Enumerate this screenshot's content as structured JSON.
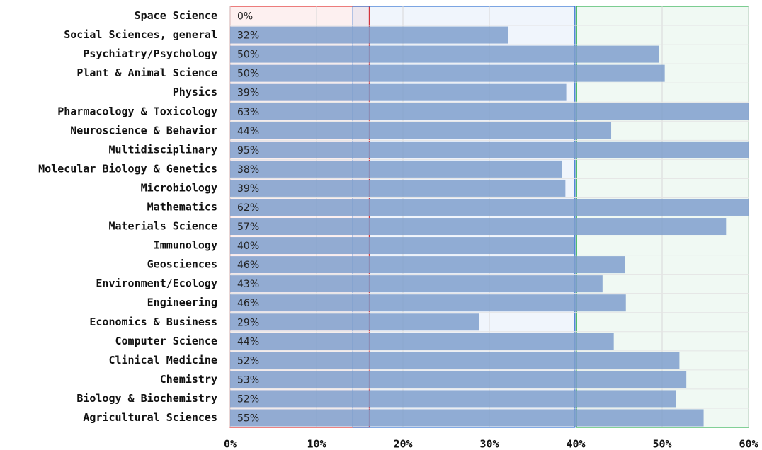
{
  "chart_data": {
    "type": "barh",
    "categories": [
      "Space Science",
      "Social Sciences, general",
      "Psychiatry/Psychology",
      "Plant & Animal Science",
      "Physics",
      "Pharmacology & Toxicology",
      "Neuroscience & Behavior",
      "Multidisciplinary",
      "Molecular Biology & Genetics",
      "Microbiology",
      "Mathematics",
      "Materials Science",
      "Immunology",
      "Geosciences",
      "Environment/Ecology",
      "Engineering",
      "Economics & Business",
      "Computer Science",
      "Clinical Medicine",
      "Chemistry",
      "Biology & Biochemistry",
      "Agricultural Sciences"
    ],
    "values": [
      0,
      32.2,
      49.6,
      50.3,
      38.9,
      63,
      44.1,
      95,
      38.4,
      38.8,
      62,
      57.4,
      39.8,
      45.7,
      43.1,
      45.8,
      28.8,
      44.4,
      52.0,
      52.8,
      51.6,
      54.8
    ],
    "value_labels": [
      "0%",
      "32%",
      "50%",
      "50%",
      "39%",
      "63%",
      "44%",
      "95%",
      "38%",
      "39%",
      "62%",
      "57%",
      "40%",
      "46%",
      "43%",
      "46%",
      "29%",
      "44%",
      "52%",
      "53%",
      "52%",
      "55%"
    ],
    "color": "#7f9fcc",
    "xlim": [
      0,
      60
    ],
    "xticks": [
      {
        "value": 0,
        "label": "0%"
      },
      {
        "value": 10,
        "label": "10%"
      },
      {
        "value": 20,
        "label": "20%"
      },
      {
        "value": 30,
        "label": "30%"
      },
      {
        "value": 40,
        "label": "40%"
      },
      {
        "value": 50,
        "label": "50%"
      },
      {
        "value": 60,
        "label": "60%"
      }
    ],
    "grid": true,
    "zones": [
      {
        "range": [
          0,
          16.1
        ],
        "color": "#e03030"
      },
      {
        "range": [
          14.2,
          39.9
        ],
        "color": "#3070d0"
      },
      {
        "range": [
          40.1,
          60
        ],
        "color": "#30b050"
      }
    ]
  }
}
